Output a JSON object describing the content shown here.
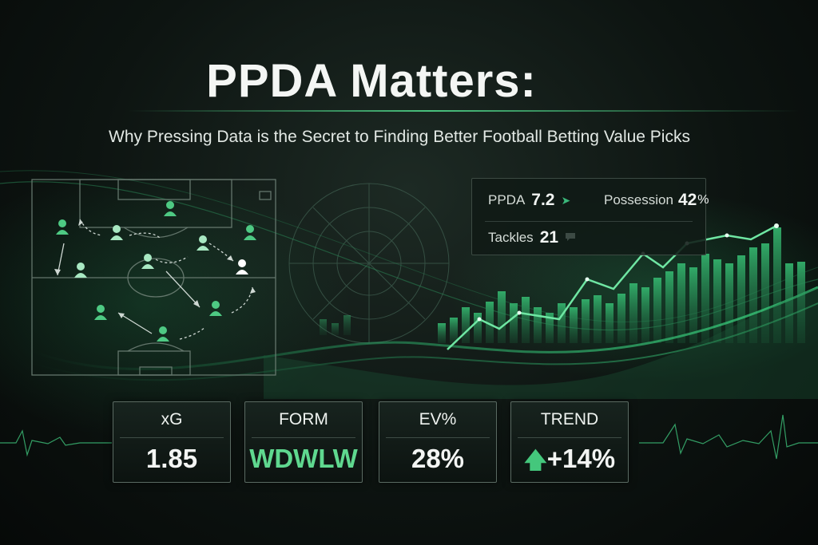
{
  "title": "PPDA Matters:",
  "subtitle": "Why Pressing Data is the Secret to Finding Better Football Betting Value Picks",
  "stats": {
    "ppda_label": "PPDA",
    "ppda_value": "7.2",
    "possession_label": "Possession",
    "possession_value": "42",
    "possession_unit": "%",
    "tackles_label": "Tackles",
    "tackles_value": "21"
  },
  "kpis": [
    {
      "label": "xG",
      "value": "1.85"
    },
    {
      "label": "FORM",
      "value": "WDWLW"
    },
    {
      "label": "EV%",
      "value": "28%"
    },
    {
      "label": "TREND",
      "value": "+14%"
    }
  ],
  "colors": {
    "accent": "#49c27e",
    "player": "#5fd88f",
    "background": "#0d1411"
  },
  "icons": {
    "ppda_trend": "up-arrow-icon",
    "tackles": "chat-bubble-icon",
    "trend": "arrow-up-icon",
    "player": "player-icon"
  }
}
